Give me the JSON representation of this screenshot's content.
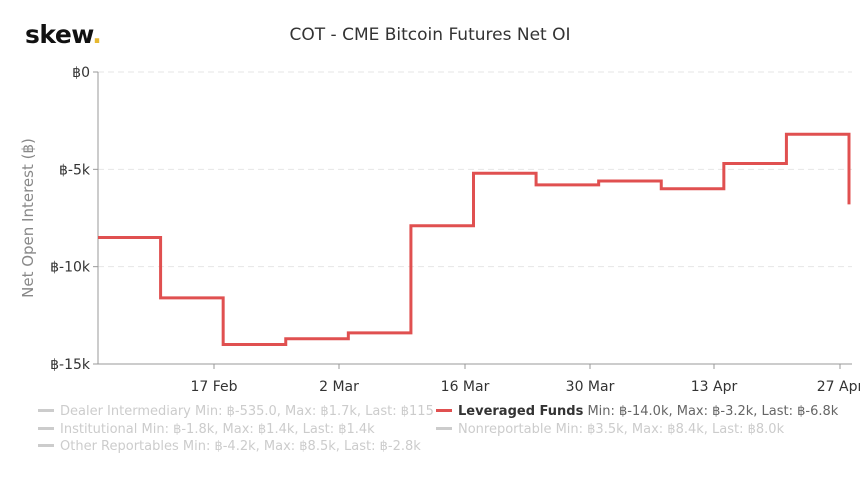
{
  "header": {
    "logo_text": "skew",
    "logo_dot": ".",
    "title": "COT - CME Bitcoin Futures Net OI"
  },
  "colors": {
    "series": "#e05050",
    "logo_dot": "#e6b830",
    "inactive": "#cccccc"
  },
  "legend": [
    {
      "name": "Dealer Intermediary",
      "stats": "Min: ฿-535.0, Max: ฿1.7k, Last: ฿115",
      "active": false
    },
    {
      "name": "Institutional",
      "stats": "Min: ฿-1.8k, Max: ฿1.4k, Last: ฿1.4k",
      "active": false
    },
    {
      "name": "Other Reportables",
      "stats": "Min: ฿-4.2k, Max: ฿8.5k, Last: ฿-2.8k",
      "active": false
    },
    {
      "name": "Leveraged Funds",
      "stats": "Min: ฿-14.0k, Max: ฿-3.2k, Last: ฿-6.8k",
      "active": true
    },
    {
      "name": "Nonreportable",
      "stats": "Min: ฿3.5k, Max: ฿8.4k, Last: ฿8.0k",
      "active": false
    }
  ],
  "chart_data": {
    "type": "line",
    "step": true,
    "title": "COT - CME Bitcoin Futures Net OI",
    "xlabel": "",
    "ylabel": "Net Open Interest (฿)",
    "ylim": [
      -15000,
      0
    ],
    "yticks": [
      "฿0",
      "฿-5k",
      "฿-10k",
      "฿-15k"
    ],
    "ytick_values": [
      0,
      -5000,
      -10000,
      -15000
    ],
    "xticks": [
      "17 Feb",
      "2 Mar",
      "16 Mar",
      "30 Mar",
      "13 Apr",
      "27 Apr"
    ],
    "grid": true,
    "legend_position": "bottom",
    "x": [
      "4 Feb",
      "11 Feb",
      "18 Feb",
      "25 Feb",
      "3 Mar",
      "10 Mar",
      "17 Mar",
      "24 Mar",
      "31 Mar",
      "7 Apr",
      "14 Apr",
      "21 Apr",
      "28 Apr"
    ],
    "series": [
      {
        "name": "Leveraged Funds",
        "values": [
          -8500,
          -11600,
          -14000,
          -13700,
          -13400,
          -7900,
          -5200,
          -5800,
          -5600,
          -6000,
          -4700,
          -3200,
          -6800
        ]
      }
    ]
  }
}
